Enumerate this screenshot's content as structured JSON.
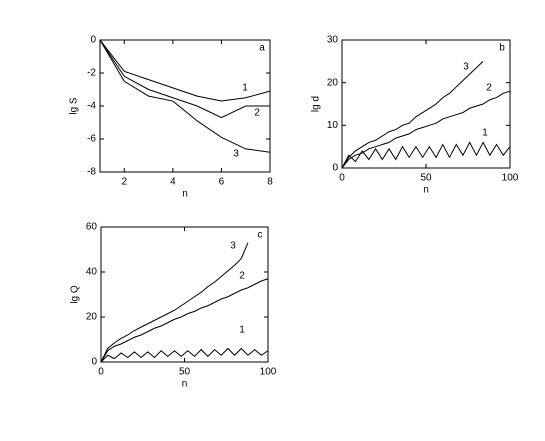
{
  "chart_data": [
    {
      "type": "line",
      "panel_label": "a",
      "x_label": "n",
      "y_label": "lg S",
      "x": [
        1,
        2,
        3,
        4,
        5,
        6,
        7,
        8
      ],
      "xlim": [
        1,
        8
      ],
      "xticks": [
        2,
        4,
        6,
        8
      ],
      "ylim": [
        -8,
        0
      ],
      "yticks": [
        0,
        -2,
        -4,
        -6,
        -8
      ],
      "series": [
        {
          "name": "1",
          "color": "#000000",
          "values": [
            0,
            -1.9,
            -2.4,
            -2.9,
            -3.4,
            -3.7,
            -3.5,
            -3.1
          ]
        },
        {
          "name": "2",
          "color": "#000000",
          "values": [
            0,
            -2.2,
            -3.0,
            -3.5,
            -4.0,
            -4.7,
            -4.0,
            -4.0
          ]
        },
        {
          "name": "3",
          "color": "#000000",
          "values": [
            0,
            -2.5,
            -3.4,
            -3.7,
            -4.9,
            -5.9,
            -6.6,
            -6.8
          ]
        }
      ]
    },
    {
      "type": "line",
      "panel_label": "b",
      "x_label": "n",
      "y_label": "lg d",
      "x": [
        0,
        4,
        8,
        12,
        16,
        20,
        24,
        28,
        32,
        36,
        40,
        44,
        48,
        52,
        56,
        60,
        64,
        68,
        72,
        76,
        80,
        84,
        88,
        92,
        96,
        100
      ],
      "xlim": [
        0,
        100
      ],
      "xticks": [
        0,
        50,
        100
      ],
      "ylim": [
        0,
        30
      ],
      "yticks": [
        0,
        10,
        20,
        30
      ],
      "series": [
        {
          "name": "3",
          "color": "#000000",
          "values": [
            0,
            2.5,
            4,
            5,
            6,
            6.5,
            7.5,
            8.5,
            9,
            10,
            10.5,
            12,
            13,
            14,
            15,
            16.5,
            17.5,
            19,
            20.5,
            22,
            23.5,
            25,
            null,
            null,
            null,
            null
          ]
        },
        {
          "name": "2",
          "color": "#000000",
          "values": [
            0,
            2,
            3,
            3.5,
            4.5,
            5,
            5.5,
            6,
            7,
            7.5,
            8,
            9,
            9.5,
            10,
            10.5,
            11.5,
            12,
            12.5,
            13,
            14,
            14.5,
            15,
            16,
            16.5,
            17.5,
            18
          ]
        },
        {
          "name": "1",
          "color": "#000000",
          "values": [
            0,
            3,
            1.5,
            4,
            2,
            4.5,
            2,
            4.5,
            2,
            5,
            2.5,
            5,
            2.5,
            5,
            2.5,
            5.5,
            2.5,
            5.5,
            3,
            6,
            3,
            6,
            3,
            5.5,
            3,
            5
          ]
        }
      ]
    },
    {
      "type": "line",
      "panel_label": "c",
      "x_label": "n",
      "y_label": "lg Q",
      "x": [
        0,
        4,
        8,
        12,
        16,
        20,
        24,
        28,
        32,
        36,
        40,
        44,
        48,
        52,
        56,
        60,
        64,
        68,
        72,
        76,
        80,
        84,
        88,
        92,
        96,
        100
      ],
      "xlim": [
        0,
        100
      ],
      "xticks": [
        0,
        50,
        100
      ],
      "ylim": [
        0,
        60
      ],
      "yticks": [
        0,
        20,
        40,
        60
      ],
      "series": [
        {
          "name": "3",
          "color": "#000000",
          "values": [
            0,
            6,
            8.5,
            10.5,
            12,
            14,
            15.5,
            17,
            18.5,
            20,
            21.5,
            23,
            25,
            27,
            29,
            31,
            33.5,
            35.5,
            38,
            40.5,
            43,
            46,
            53,
            null,
            null,
            null
          ]
        },
        {
          "name": "2",
          "color": "#000000",
          "values": [
            0,
            5,
            7,
            8,
            9.5,
            11,
            12,
            13.5,
            15,
            16,
            17.5,
            19,
            20,
            21.5,
            22.5,
            24,
            25,
            26.5,
            28,
            29,
            30.5,
            32,
            33,
            34.5,
            36,
            37
          ]
        },
        {
          "name": "1",
          "color": "#000000",
          "values": [
            0,
            3,
            1.5,
            4,
            2,
            4.5,
            2,
            4.5,
            2,
            5,
            2.5,
            5,
            2.5,
            5,
            2.5,
            5.5,
            2.5,
            5.5,
            3,
            6,
            3,
            6,
            3,
            5.5,
            3,
            5
          ]
        }
      ]
    }
  ]
}
